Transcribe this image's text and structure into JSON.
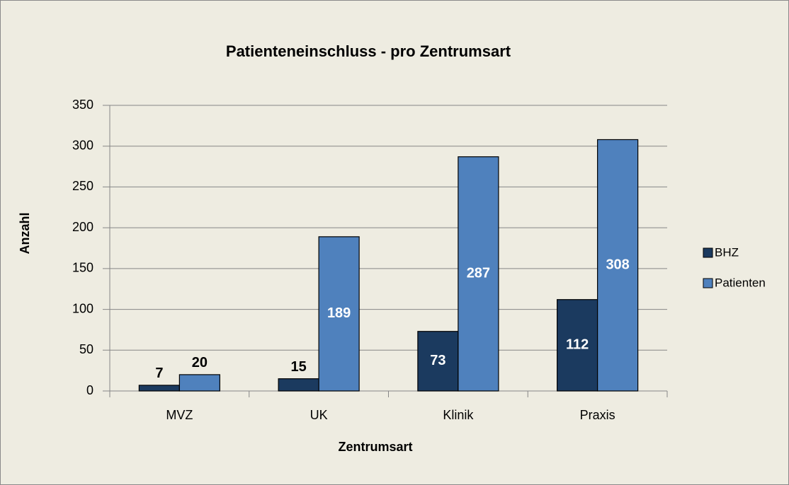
{
  "chart_data": {
    "type": "bar",
    "title": "Patienteneinschluss - pro Zentrumsart",
    "x_label": "Zentrumsart",
    "y_label": "Anzahl",
    "categories": [
      "MVZ",
      "UK",
      "Klinik",
      "Praxis"
    ],
    "series": [
      {
        "name": "BHZ",
        "color": "#1b3a5f",
        "values": [
          7,
          15,
          73,
          112
        ]
      },
      {
        "name": "Patienten",
        "color": "#4f81bd",
        "values": [
          20,
          189,
          287,
          308
        ]
      }
    ],
    "ylim": [
      0,
      350
    ],
    "yticks": [
      0,
      50,
      100,
      150,
      200,
      250,
      300,
      350
    ],
    "grid": true,
    "legend": "right"
  }
}
